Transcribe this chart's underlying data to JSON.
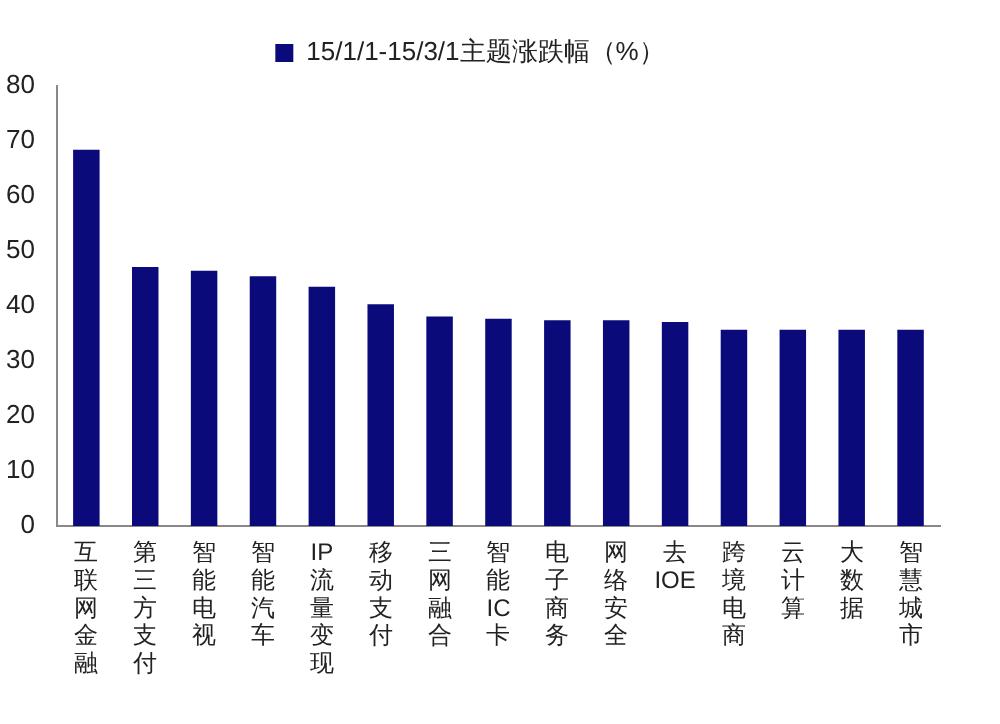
{
  "chart_data": {
    "type": "bar",
    "categories": [
      "互联网金融",
      "第三方支付",
      "智能电视",
      "智能汽车",
      "IP流量变现",
      "移动支付",
      "三网融合",
      "智能IC卡",
      "电子商务",
      "网络安全",
      "去IOE",
      "跨境电商",
      "云计算",
      "大数据",
      "智慧城市"
    ],
    "series": [
      {
        "name": "15/1/1-15/3/1主题涨跌幅（%）",
        "color": "#0a0a7a",
        "values": [
          68.4,
          47.1,
          46.4,
          45.4,
          43.5,
          40.3,
          38.1,
          37.7,
          37.4,
          37.4,
          37.1,
          35.7,
          35.7,
          35.7,
          35.7
        ]
      }
    ],
    "ylim": [
      0,
      80
    ],
    "yticks": [
      0,
      10,
      20,
      30,
      40,
      50,
      60,
      70,
      80
    ],
    "grid": false,
    "legend": "top"
  }
}
